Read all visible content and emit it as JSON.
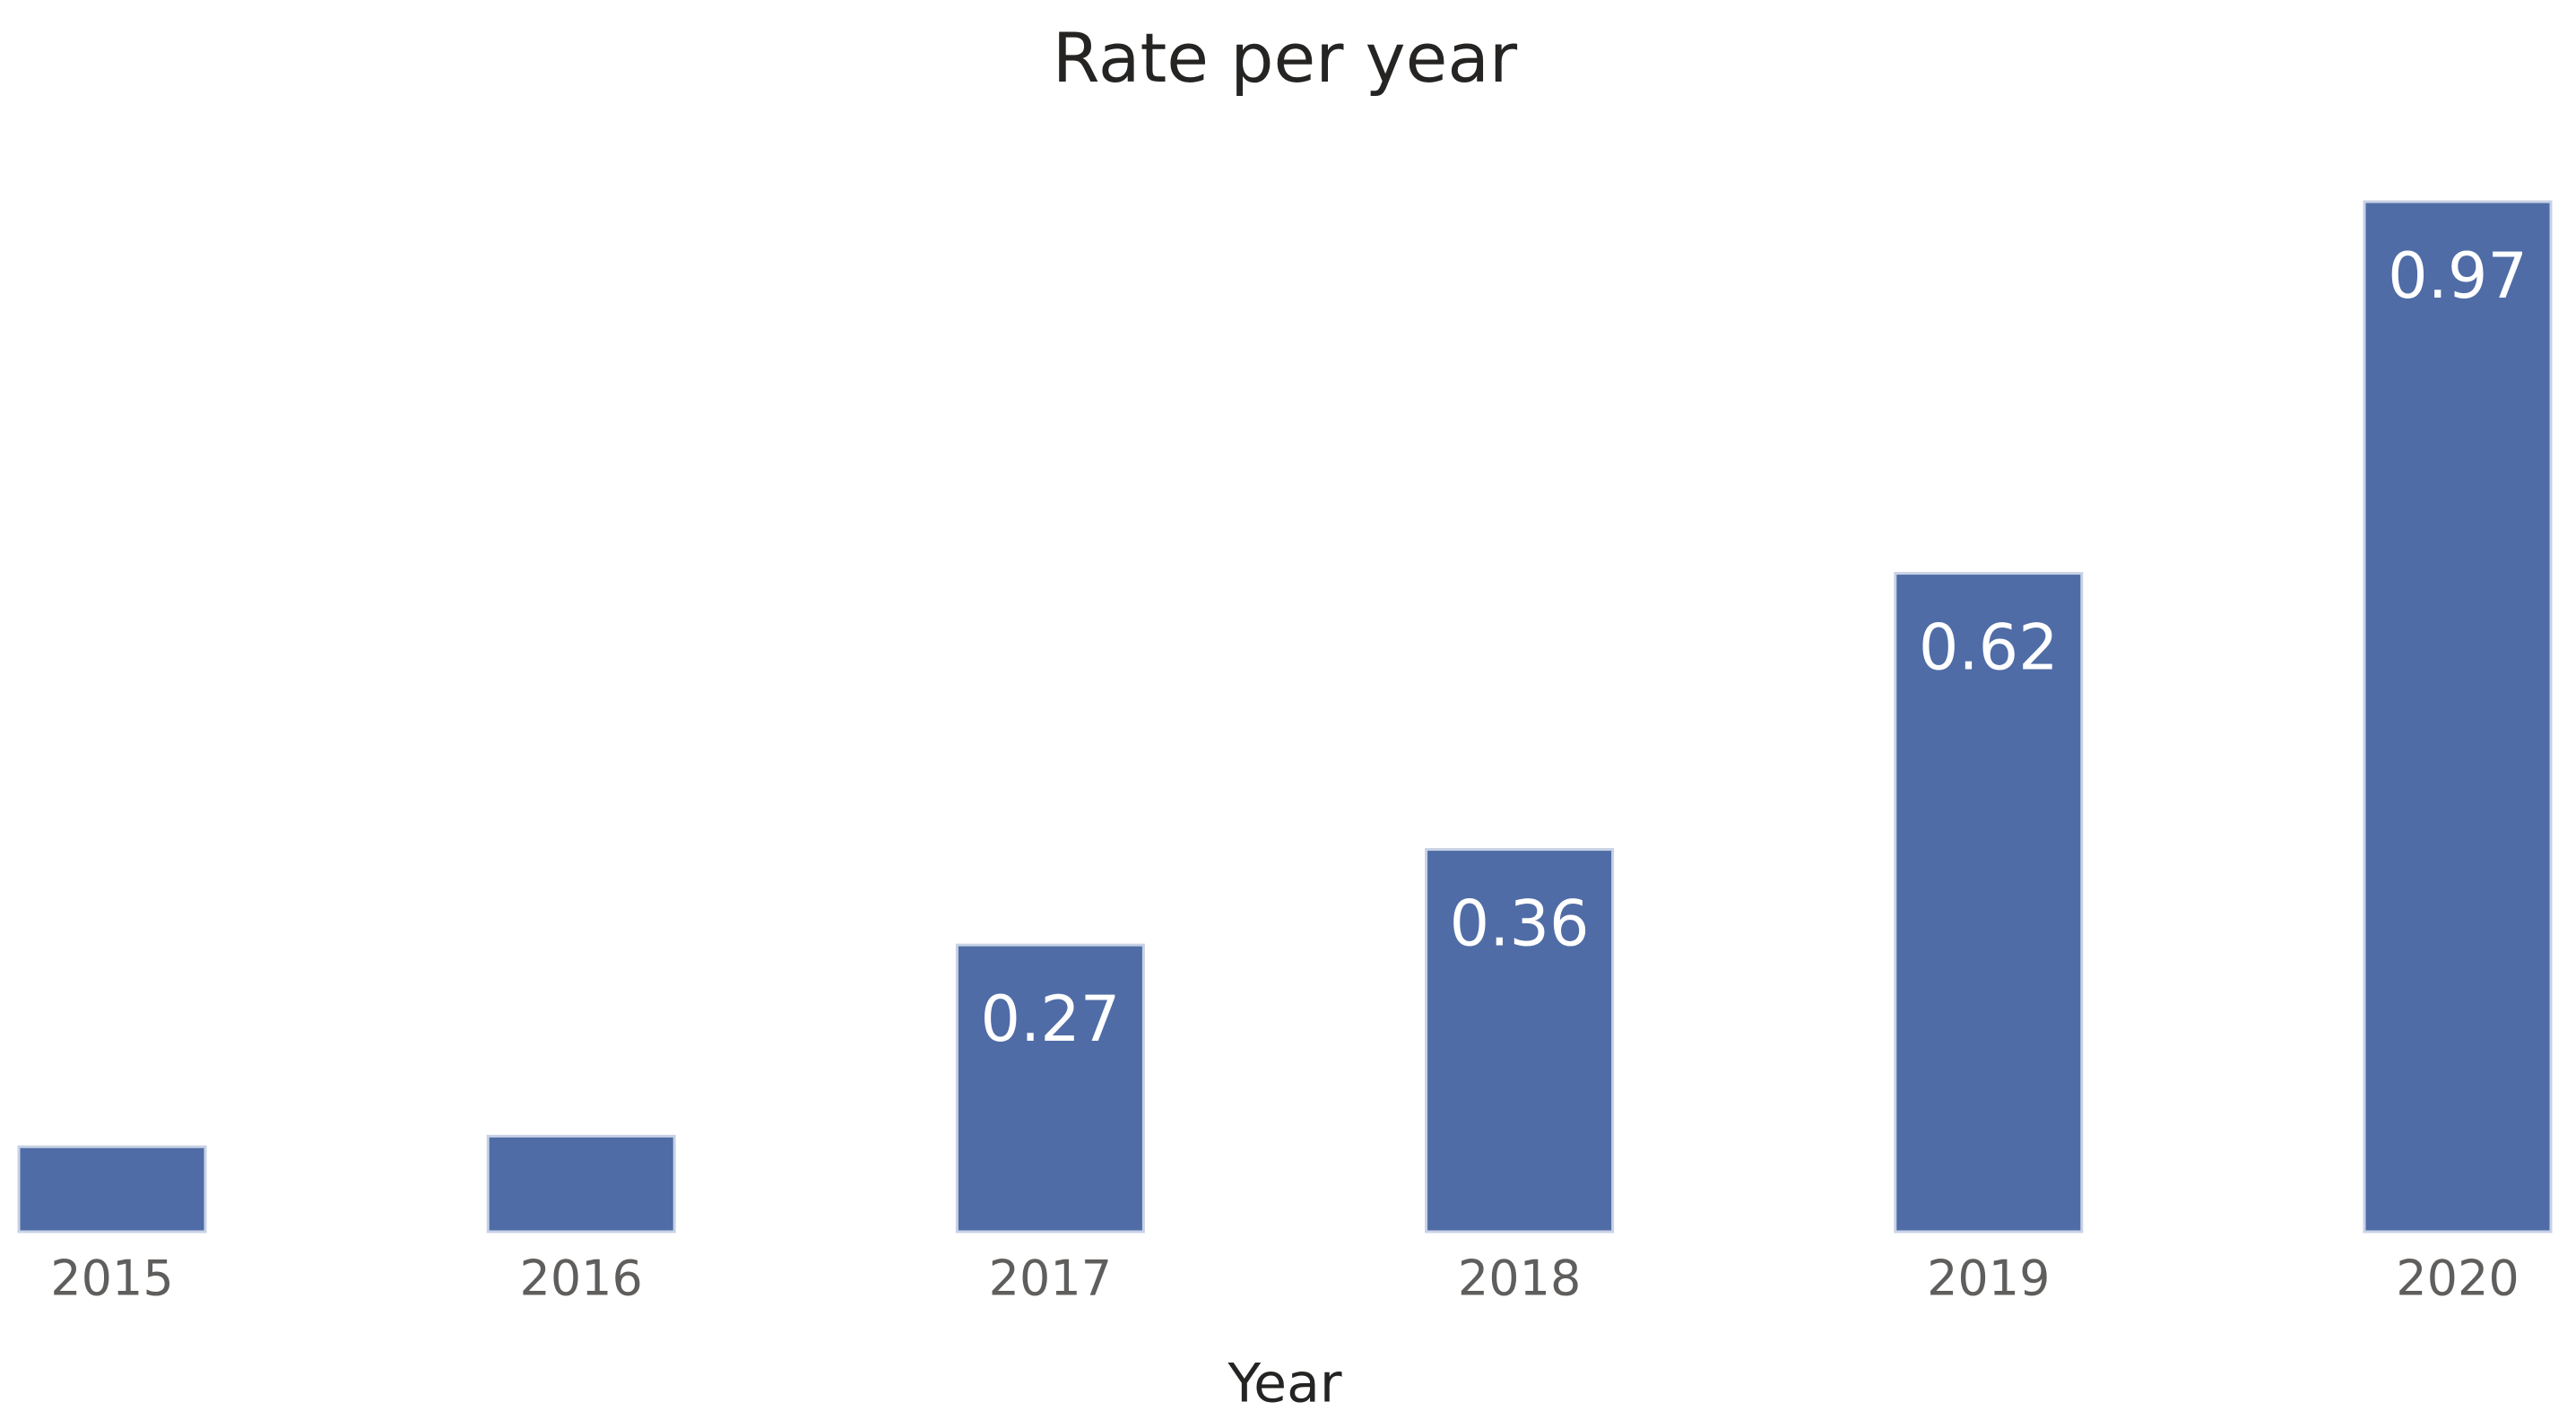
{
  "chart_data": {
    "type": "bar",
    "title": "Rate per year",
    "x_label": "Year",
    "categories": [
      "2015",
      "2016",
      "2017",
      "2018",
      "2019",
      "2020"
    ],
    "values": [
      0.08,
      0.09,
      0.27,
      0.36,
      0.62,
      0.97
    ],
    "color": "#4f6ca6"
  }
}
